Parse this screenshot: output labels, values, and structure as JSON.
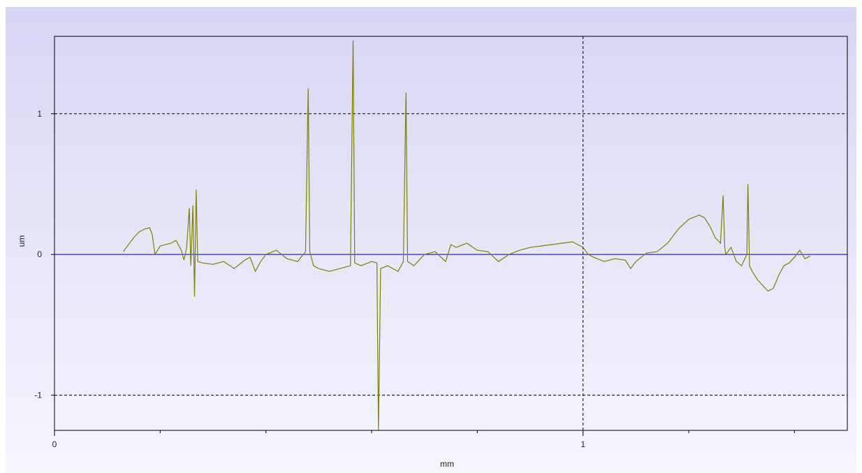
{
  "chart_data": {
    "type": "line",
    "xlabel": "mm",
    "ylabel": "um",
    "xlim": [
      0,
      1.5
    ],
    "ylim": [
      -1.25,
      1.55
    ],
    "x_ticks_labeled": [
      {
        "value": 0,
        "label": "0"
      },
      {
        "value": 1,
        "label": "1"
      }
    ],
    "x_ticks_minor": [
      0.2,
      0.4,
      0.6,
      0.8,
      1.2,
      1.4
    ],
    "y_ticks": [
      {
        "value": 1,
        "label": "1"
      },
      {
        "value": 0,
        "label": "0"
      },
      {
        "value": -1,
        "label": "-1"
      }
    ],
    "grid": {
      "dashed_y": [
        1,
        -1
      ],
      "dashed_x": [
        1
      ],
      "zero_line": 0
    },
    "colors": {
      "series": "#7f7f00",
      "zero_line": "#3b3bd0",
      "grid": "#000000",
      "background_top": "#d6d6f5",
      "background_bottom": "#f6f6fd"
    },
    "series": [
      {
        "values": [
          [
            0.13,
            0.02
          ],
          [
            0.14,
            0.07
          ],
          [
            0.15,
            0.12
          ],
          [
            0.16,
            0.16
          ],
          [
            0.17,
            0.18
          ],
          [
            0.18,
            0.19
          ],
          [
            0.185,
            0.14
          ],
          [
            0.19,
            0.0
          ],
          [
            0.2,
            0.06
          ],
          [
            0.21,
            0.07
          ],
          [
            0.22,
            0.08
          ],
          [
            0.23,
            0.1
          ],
          [
            0.24,
            0.03
          ],
          [
            0.245,
            -0.04
          ],
          [
            0.25,
            0.05
          ],
          [
            0.255,
            0.33
          ],
          [
            0.258,
            -0.08
          ],
          [
            0.262,
            0.35
          ],
          [
            0.265,
            -0.3
          ],
          [
            0.268,
            0.46
          ],
          [
            0.271,
            -0.05
          ],
          [
            0.28,
            -0.06
          ],
          [
            0.3,
            -0.07
          ],
          [
            0.32,
            -0.05
          ],
          [
            0.34,
            -0.1
          ],
          [
            0.36,
            -0.04
          ],
          [
            0.37,
            -0.02
          ],
          [
            0.38,
            -0.12
          ],
          [
            0.39,
            -0.05
          ],
          [
            0.4,
            0.0
          ],
          [
            0.42,
            0.03
          ],
          [
            0.44,
            -0.03
          ],
          [
            0.46,
            -0.05
          ],
          [
            0.475,
            0.02
          ],
          [
            0.48,
            1.18
          ],
          [
            0.483,
            0.02
          ],
          [
            0.49,
            -0.08
          ],
          [
            0.5,
            -0.1
          ],
          [
            0.52,
            -0.12
          ],
          [
            0.54,
            -0.1
          ],
          [
            0.56,
            -0.08
          ],
          [
            0.565,
            1.52
          ],
          [
            0.568,
            -0.06
          ],
          [
            0.58,
            -0.08
          ],
          [
            0.6,
            -0.05
          ],
          [
            0.61,
            -0.06
          ],
          [
            0.613,
            -1.25
          ],
          [
            0.617,
            -0.1
          ],
          [
            0.63,
            -0.08
          ],
          [
            0.64,
            -0.1
          ],
          [
            0.65,
            -0.12
          ],
          [
            0.66,
            -0.05
          ],
          [
            0.665,
            1.15
          ],
          [
            0.668,
            -0.05
          ],
          [
            0.68,
            -0.08
          ],
          [
            0.7,
            0.0
          ],
          [
            0.72,
            0.02
          ],
          [
            0.74,
            -0.05
          ],
          [
            0.75,
            0.07
          ],
          [
            0.76,
            0.05
          ],
          [
            0.78,
            0.08
          ],
          [
            0.8,
            0.03
          ],
          [
            0.82,
            0.02
          ],
          [
            0.84,
            -0.05
          ],
          [
            0.86,
            0.0
          ],
          [
            0.88,
            0.03
          ],
          [
            0.9,
            0.05
          ],
          [
            0.92,
            0.06
          ],
          [
            0.94,
            0.07
          ],
          [
            0.96,
            0.08
          ],
          [
            0.98,
            0.09
          ],
          [
            1.0,
            0.05
          ],
          [
            1.01,
            0.0
          ],
          [
            1.02,
            -0.02
          ],
          [
            1.04,
            -0.05
          ],
          [
            1.06,
            -0.03
          ],
          [
            1.08,
            -0.04
          ],
          [
            1.09,
            -0.1
          ],
          [
            1.1,
            -0.05
          ],
          [
            1.12,
            0.01
          ],
          [
            1.14,
            0.02
          ],
          [
            1.16,
            0.08
          ],
          [
            1.18,
            0.18
          ],
          [
            1.2,
            0.25
          ],
          [
            1.22,
            0.28
          ],
          [
            1.23,
            0.26
          ],
          [
            1.24,
            0.2
          ],
          [
            1.25,
            0.12
          ],
          [
            1.26,
            0.08
          ],
          [
            1.265,
            0.42
          ],
          [
            1.268,
            0.05
          ],
          [
            1.27,
            0.0
          ],
          [
            1.28,
            0.05
          ],
          [
            1.29,
            -0.05
          ],
          [
            1.3,
            -0.08
          ],
          [
            1.31,
            0.0
          ],
          [
            1.312,
            0.5
          ],
          [
            1.315,
            -0.08
          ],
          [
            1.32,
            -0.12
          ],
          [
            1.33,
            -0.18
          ],
          [
            1.34,
            -0.22
          ],
          [
            1.35,
            -0.26
          ],
          [
            1.36,
            -0.24
          ],
          [
            1.37,
            -0.15
          ],
          [
            1.38,
            -0.08
          ],
          [
            1.39,
            -0.06
          ],
          [
            1.4,
            -0.02
          ],
          [
            1.41,
            0.03
          ],
          [
            1.42,
            -0.03
          ],
          [
            1.43,
            -0.01
          ]
        ]
      }
    ]
  }
}
